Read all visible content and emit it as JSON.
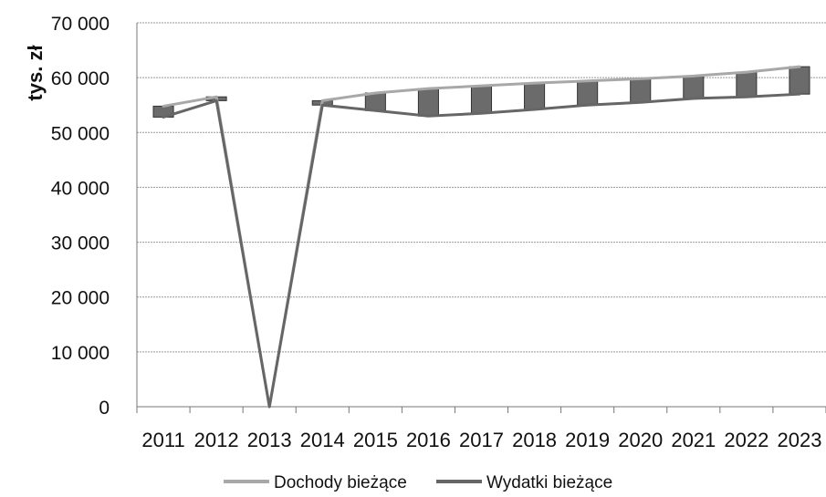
{
  "chart_data": {
    "type": "line",
    "ylabel": "tys. zł",
    "ylim": [
      0,
      70000
    ],
    "y_ticks": [
      0,
      10000,
      20000,
      30000,
      40000,
      50000,
      60000,
      70000
    ],
    "y_tick_labels": [
      "0",
      "10 000",
      "20 000",
      "30 000",
      "40 000",
      "50 000",
      "60 000",
      "70 000"
    ],
    "categories": [
      "2011",
      "2012",
      "2013",
      "2014",
      "2015",
      "2016",
      "2017",
      "2018",
      "2019",
      "2020",
      "2021",
      "2022",
      "2023"
    ],
    "grid": true,
    "legend_position": "bottom",
    "series": [
      {
        "name": "Dochody bieżące",
        "color": "#a8a8a8",
        "values": [
          54800,
          56500,
          0,
          55800,
          57200,
          58000,
          58500,
          59000,
          59400,
          59800,
          60300,
          61000,
          62000
        ]
      },
      {
        "name": "Wydatki bieżące",
        "color": "#666666",
        "values": [
          52800,
          55800,
          0,
          55000,
          54000,
          53000,
          53500,
          54200,
          55000,
          55500,
          56200,
          56500,
          57000
        ]
      }
    ],
    "bar_color": "#6b6b6b"
  }
}
